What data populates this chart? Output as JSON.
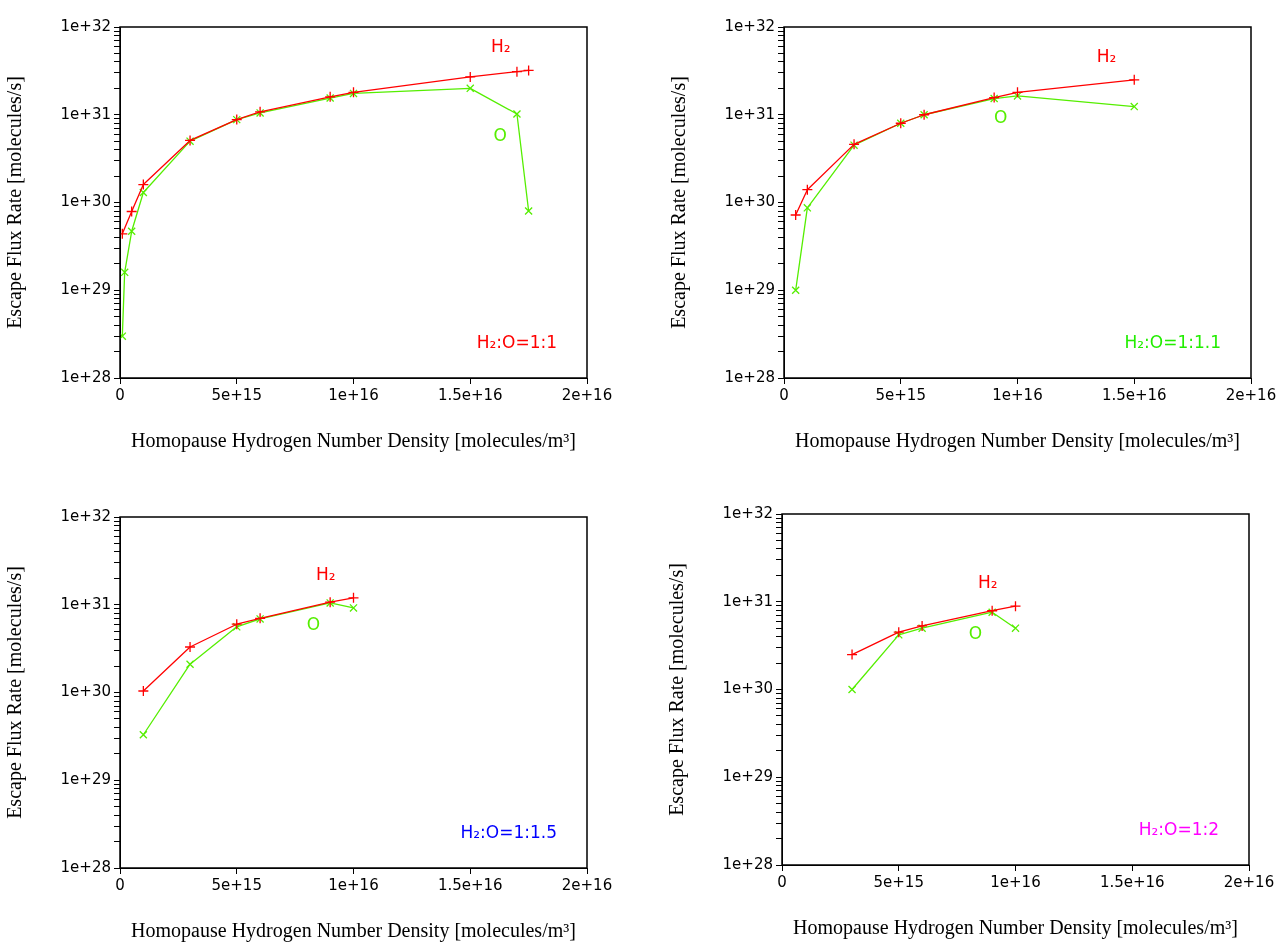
{
  "chart_data": [
    {
      "type": "line",
      "xlabel": "Homopause Hydrogen Number Density [molecules/m³]",
      "ylabel": "Escape Flux Rate [molecules/s]",
      "log": "y",
      "grid": false,
      "legend": false,
      "line_style": "solid",
      "annotations": [
        "H₂:O=1:1"
      ],
      "xlim": [
        0,
        2e+16
      ],
      "xticks": [
        {
          "value": 0,
          "label": "0"
        },
        {
          "value": 5000000000000000.0,
          "label": "5e+15"
        },
        {
          "value": 1e+16,
          "label": "1e+16"
        },
        {
          "value": 1.5e+16,
          "label": "1.5e+16"
        },
        {
          "value": 2e+16,
          "label": "2e+16"
        }
      ],
      "ylim": [
        1e+28,
        1e+32
      ],
      "yticks": [
        {
          "value": 1e+28,
          "label": "1e+28"
        },
        {
          "value": 2e+28,
          "label": null
        },
        {
          "value": 3e+28,
          "label": null
        },
        {
          "value": 4e+28,
          "label": null
        },
        {
          "value": 5e+28,
          "label": null
        },
        {
          "value": 6e+28,
          "label": null
        },
        {
          "value": 7e+28,
          "label": null
        },
        {
          "value": 8e+28,
          "label": null
        },
        {
          "value": 9e+28,
          "label": null
        },
        {
          "value": 1e+29,
          "label": "1e+29"
        },
        {
          "value": 2e+29,
          "label": null
        },
        {
          "value": 3e+29,
          "label": null
        },
        {
          "value": 4e+29,
          "label": null
        },
        {
          "value": 5e+29,
          "label": null
        },
        {
          "value": 6e+29,
          "label": null
        },
        {
          "value": 7e+29,
          "label": null
        },
        {
          "value": 8e+29,
          "label": null
        },
        {
          "value": 9e+29,
          "label": null
        },
        {
          "value": 1e+30,
          "label": "1e+30"
        },
        {
          "value": 2e+30,
          "label": null
        },
        {
          "value": 3e+30,
          "label": null
        },
        {
          "value": 4e+30,
          "label": null
        },
        {
          "value": 5e+30,
          "label": null
        },
        {
          "value": 6e+30,
          "label": null
        },
        {
          "value": 7e+30,
          "label": null
        },
        {
          "value": 8e+30,
          "label": null
        },
        {
          "value": 9e+30,
          "label": null
        },
        {
          "value": 1e+31,
          "label": "1e+31"
        },
        {
          "value": 2e+31,
          "label": null
        },
        {
          "value": 3e+31,
          "label": null
        },
        {
          "value": 4e+31,
          "label": null
        },
        {
          "value": 5e+31,
          "label": null
        },
        {
          "value": 6e+31,
          "label": null
        },
        {
          "value": 7e+31,
          "label": null
        },
        {
          "value": 8e+31,
          "label": null
        },
        {
          "value": 9e+31,
          "label": null
        },
        {
          "value": 1e+32,
          "label": "1e+32"
        }
      ],
      "series": [
        {
          "name": "H₂",
          "color": "#ff0000",
          "marker": "cross",
          "x": [
            100000000000000.0,
            500000000000000.0,
            1000000000000000.0,
            3000000000000000.0,
            5000000000000000.0,
            6000000000000000.0,
            9000000000000000.0,
            1e+16,
            1.5e+16,
            1.7e+16,
            1.75e+16
          ],
          "values": [
            4.4e+29,
            7.9e+29,
            1.6e+30,
            5.1e+30,
            8.8e+30,
            1.08e+31,
            1.6e+31,
            1.8e+31,
            2.7e+31,
            3.1e+31,
            3.2e+31
          ]
        },
        {
          "name": "O",
          "color": "#55ee00",
          "marker": "cross",
          "x": [
            100000000000000.0,
            200000000000000.0,
            500000000000000.0,
            1000000000000000.0,
            3000000000000000.0,
            5000000000000000.0,
            6000000000000000.0,
            9000000000000000.0,
            1e+16,
            1.5e+16,
            1.7e+16,
            1.75e+16
          ],
          "values": [
            3e+28,
            1.6e+29,
            4.7e+29,
            1.3e+30,
            5e+30,
            8.8e+30,
            1.05e+31,
            1.55e+31,
            1.75e+31,
            2e+31,
            1.02e+31,
            8e+29
          ]
        }
      ]
    },
    {
      "type": "line",
      "xlabel": "Homopause Hydrogen Number Density [molecules/m³]",
      "ylabel": "Escape Flux Rate [molecules/s]",
      "log": "y",
      "grid": false,
      "legend": false,
      "line_style": "solid",
      "annotations": [
        "H₂:O=1:1.1"
      ],
      "xlim": [
        0,
        2e+16
      ],
      "xticks": [
        {
          "value": 0,
          "label": "0"
        },
        {
          "value": 5000000000000000.0,
          "label": "5e+15"
        },
        {
          "value": 1e+16,
          "label": "1e+16"
        },
        {
          "value": 1.5e+16,
          "label": "1.5e+16"
        },
        {
          "value": 2e+16,
          "label": "2e+16"
        }
      ],
      "ylim": [
        1e+28,
        1e+32
      ],
      "yticks": [
        {
          "value": 1e+28,
          "label": "1e+28"
        },
        {
          "value": 2e+28,
          "label": null
        },
        {
          "value": 3e+28,
          "label": null
        },
        {
          "value": 4e+28,
          "label": null
        },
        {
          "value": 5e+28,
          "label": null
        },
        {
          "value": 6e+28,
          "label": null
        },
        {
          "value": 7e+28,
          "label": null
        },
        {
          "value": 8e+28,
          "label": null
        },
        {
          "value": 9e+28,
          "label": null
        },
        {
          "value": 1e+29,
          "label": "1e+29"
        },
        {
          "value": 2e+29,
          "label": null
        },
        {
          "value": 3e+29,
          "label": null
        },
        {
          "value": 4e+29,
          "label": null
        },
        {
          "value": 5e+29,
          "label": null
        },
        {
          "value": 6e+29,
          "label": null
        },
        {
          "value": 7e+29,
          "label": null
        },
        {
          "value": 8e+29,
          "label": null
        },
        {
          "value": 9e+29,
          "label": null
        },
        {
          "value": 1e+30,
          "label": "1e+30"
        },
        {
          "value": 2e+30,
          "label": null
        },
        {
          "value": 3e+30,
          "label": null
        },
        {
          "value": 4e+30,
          "label": null
        },
        {
          "value": 5e+30,
          "label": null
        },
        {
          "value": 6e+30,
          "label": null
        },
        {
          "value": 7e+30,
          "label": null
        },
        {
          "value": 8e+30,
          "label": null
        },
        {
          "value": 9e+30,
          "label": null
        },
        {
          "value": 1e+31,
          "label": "1e+31"
        },
        {
          "value": 2e+31,
          "label": null
        },
        {
          "value": 3e+31,
          "label": null
        },
        {
          "value": 4e+31,
          "label": null
        },
        {
          "value": 5e+31,
          "label": null
        },
        {
          "value": 6e+31,
          "label": null
        },
        {
          "value": 7e+31,
          "label": null
        },
        {
          "value": 8e+31,
          "label": null
        },
        {
          "value": 9e+31,
          "label": null
        },
        {
          "value": 1e+32,
          "label": "1e+32"
        }
      ],
      "series": [
        {
          "name": "H₂",
          "color": "#ff0000",
          "marker": "cross",
          "x": [
            500000000000000.0,
            1000000000000000.0,
            3000000000000000.0,
            5000000000000000.0,
            6000000000000000.0,
            9000000000000000.0,
            1e+16,
            1.5e+16
          ],
          "values": [
            7.2e+29,
            1.4e+30,
            4.6e+30,
            8e+30,
            1e+31,
            1.57e+31,
            1.8e+31,
            2.5e+31
          ]
        },
        {
          "name": "O",
          "color": "#55ee00",
          "marker": "cross",
          "x": [
            500000000000000.0,
            1000000000000000.0,
            3000000000000000.0,
            5000000000000000.0,
            6000000000000000.0,
            9000000000000000.0,
            1e+16,
            1.5e+16
          ],
          "values": [
            1e+29,
            8.7e+29,
            4.5e+30,
            8e+30,
            1e+31,
            1.53e+31,
            1.64e+31,
            1.24e+31
          ]
        }
      ]
    },
    {
      "type": "line",
      "xlabel": "Homopause Hydrogen Number Density [molecules/m³]",
      "ylabel": "Escape Flux Rate [molecules/s]",
      "log": "y",
      "grid": false,
      "legend": false,
      "line_style": "solid",
      "annotations": [
        "H₂:O=1:1.5"
      ],
      "xlim": [
        0,
        2e+16
      ],
      "xticks": [
        {
          "value": 0,
          "label": "0"
        },
        {
          "value": 5000000000000000.0,
          "label": "5e+15"
        },
        {
          "value": 1e+16,
          "label": "1e+16"
        },
        {
          "value": 1.5e+16,
          "label": "1.5e+16"
        },
        {
          "value": 2e+16,
          "label": "2e+16"
        }
      ],
      "ylim": [
        1e+28,
        1e+32
      ],
      "yticks": [
        {
          "value": 1e+28,
          "label": "1e+28"
        },
        {
          "value": 2e+28,
          "label": null
        },
        {
          "value": 3e+28,
          "label": null
        },
        {
          "value": 4e+28,
          "label": null
        },
        {
          "value": 5e+28,
          "label": null
        },
        {
          "value": 6e+28,
          "label": null
        },
        {
          "value": 7e+28,
          "label": null
        },
        {
          "value": 8e+28,
          "label": null
        },
        {
          "value": 9e+28,
          "label": null
        },
        {
          "value": 1e+29,
          "label": "1e+29"
        },
        {
          "value": 2e+29,
          "label": null
        },
        {
          "value": 3e+29,
          "label": null
        },
        {
          "value": 4e+29,
          "label": null
        },
        {
          "value": 5e+29,
          "label": null
        },
        {
          "value": 6e+29,
          "label": null
        },
        {
          "value": 7e+29,
          "label": null
        },
        {
          "value": 8e+29,
          "label": null
        },
        {
          "value": 9e+29,
          "label": null
        },
        {
          "value": 1e+30,
          "label": "1e+30"
        },
        {
          "value": 2e+30,
          "label": null
        },
        {
          "value": 3e+30,
          "label": null
        },
        {
          "value": 4e+30,
          "label": null
        },
        {
          "value": 5e+30,
          "label": null
        },
        {
          "value": 6e+30,
          "label": null
        },
        {
          "value": 7e+30,
          "label": null
        },
        {
          "value": 8e+30,
          "label": null
        },
        {
          "value": 9e+30,
          "label": null
        },
        {
          "value": 1e+31,
          "label": "1e+31"
        },
        {
          "value": 2e+31,
          "label": null
        },
        {
          "value": 3e+31,
          "label": null
        },
        {
          "value": 4e+31,
          "label": null
        },
        {
          "value": 5e+31,
          "label": null
        },
        {
          "value": 6e+31,
          "label": null
        },
        {
          "value": 7e+31,
          "label": null
        },
        {
          "value": 8e+31,
          "label": null
        },
        {
          "value": 9e+31,
          "label": null
        },
        {
          "value": 1e+32,
          "label": "1e+32"
        }
      ],
      "series": [
        {
          "name": "H₂",
          "color": "#ff0000",
          "marker": "cross",
          "x": [
            1000000000000000.0,
            3000000000000000.0,
            5000000000000000.0,
            6000000000000000.0,
            9000000000000000.0,
            1e+16
          ],
          "values": [
            1.04e+30,
            3.3e+30,
            6e+30,
            7e+30,
            1.07e+31,
            1.2e+31
          ]
        },
        {
          "name": "O",
          "color": "#55ee00",
          "marker": "cross",
          "x": [
            1000000000000000.0,
            3000000000000000.0,
            5000000000000000.0,
            6000000000000000.0,
            9000000000000000.0,
            1e+16
          ],
          "values": [
            3.3e+29,
            2.1e+30,
            5.6e+30,
            6.9e+30,
            1.05e+31,
            9.2e+30
          ]
        }
      ]
    },
    {
      "type": "line",
      "xlabel": "Homopause Hydrogen Number Density [molecules/m³]",
      "ylabel": "Escape Flux Rate [molecules/s]",
      "log": "y",
      "grid": false,
      "legend": false,
      "line_style": "solid",
      "annotations": [
        "H₂:O=1:2"
      ],
      "xlim": [
        0,
        2e+16
      ],
      "xticks": [
        {
          "value": 0,
          "label": "0"
        },
        {
          "value": 5000000000000000.0,
          "label": "5e+15"
        },
        {
          "value": 1e+16,
          "label": "1e+16"
        },
        {
          "value": 1.5e+16,
          "label": "1.5e+16"
        },
        {
          "value": 2e+16,
          "label": "2e+16"
        }
      ],
      "ylim": [
        1e+28,
        1e+32
      ],
      "yticks": [
        {
          "value": 1e+28,
          "label": "1e+28"
        },
        {
          "value": 2e+28,
          "label": null
        },
        {
          "value": 3e+28,
          "label": null
        },
        {
          "value": 4e+28,
          "label": null
        },
        {
          "value": 5e+28,
          "label": null
        },
        {
          "value": 6e+28,
          "label": null
        },
        {
          "value": 7e+28,
          "label": null
        },
        {
          "value": 8e+28,
          "label": null
        },
        {
          "value": 9e+28,
          "label": null
        },
        {
          "value": 1e+29,
          "label": "1e+29"
        },
        {
          "value": 2e+29,
          "label": null
        },
        {
          "value": 3e+29,
          "label": null
        },
        {
          "value": 4e+29,
          "label": null
        },
        {
          "value": 5e+29,
          "label": null
        },
        {
          "value": 6e+29,
          "label": null
        },
        {
          "value": 7e+29,
          "label": null
        },
        {
          "value": 8e+29,
          "label": null
        },
        {
          "value": 9e+29,
          "label": null
        },
        {
          "value": 1e+30,
          "label": "1e+30"
        },
        {
          "value": 2e+30,
          "label": null
        },
        {
          "value": 3e+30,
          "label": null
        },
        {
          "value": 4e+30,
          "label": null
        },
        {
          "value": 5e+30,
          "label": null
        },
        {
          "value": 6e+30,
          "label": null
        },
        {
          "value": 7e+30,
          "label": null
        },
        {
          "value": 8e+30,
          "label": null
        },
        {
          "value": 9e+30,
          "label": null
        },
        {
          "value": 1e+31,
          "label": "1e+31"
        },
        {
          "value": 2e+31,
          "label": null
        },
        {
          "value": 3e+31,
          "label": null
        },
        {
          "value": 4e+31,
          "label": null
        },
        {
          "value": 5e+31,
          "label": null
        },
        {
          "value": 6e+31,
          "label": null
        },
        {
          "value": 7e+31,
          "label": null
        },
        {
          "value": 8e+31,
          "label": null
        },
        {
          "value": 9e+31,
          "label": null
        },
        {
          "value": 1e+32,
          "label": "1e+32"
        }
      ],
      "series": [
        {
          "name": "H₂",
          "color": "#ff0000",
          "marker": "cross",
          "x": [
            3000000000000000.0,
            5000000000000000.0,
            6000000000000000.0,
            9000000000000000.0,
            1e+16
          ],
          "values": [
            2.5e+30,
            4.5e+30,
            5.3e+30,
            7.9e+30,
            8.9e+30
          ]
        },
        {
          "name": "O",
          "color": "#55ee00",
          "marker": "cross",
          "x": [
            3000000000000000.0,
            5000000000000000.0,
            6000000000000000.0,
            9000000000000000.0,
            1e+16
          ],
          "values": [
            1e+30,
            4.2e+30,
            5e+30,
            7.6e+30,
            5e+30
          ]
        }
      ]
    }
  ]
}
